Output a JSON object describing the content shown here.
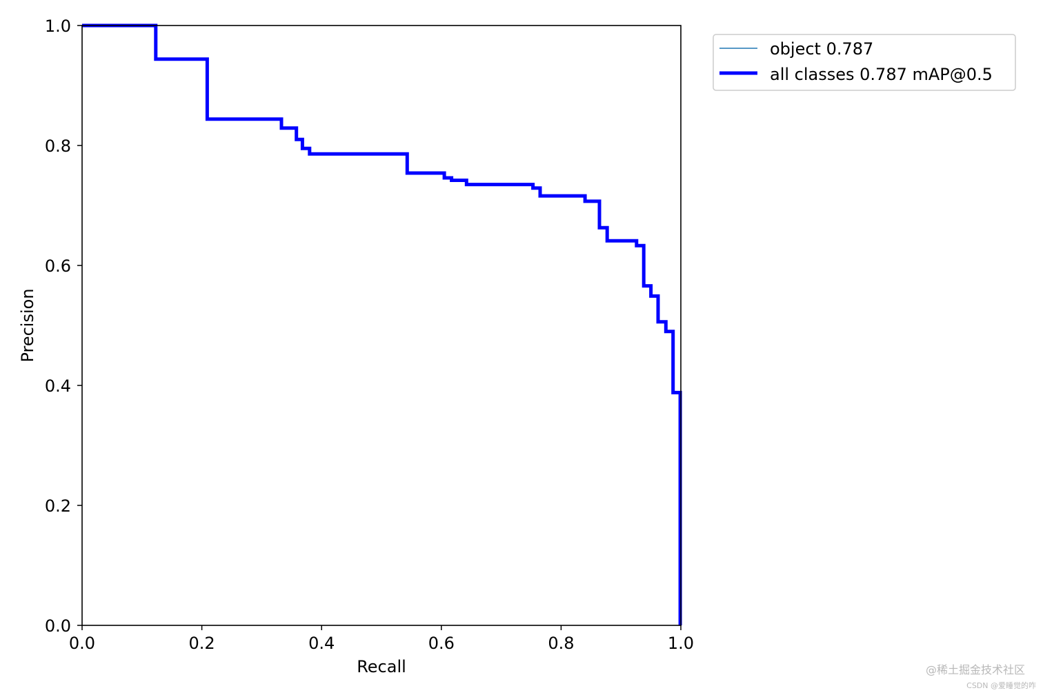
{
  "chart_data": {
    "type": "line",
    "title": "",
    "xlabel": "Recall",
    "ylabel": "Precision",
    "xlim": [
      0,
      1
    ],
    "ylim": [
      0,
      1
    ],
    "xticks": [
      "0.0",
      "0.2",
      "0.4",
      "0.6",
      "0.8",
      "1.0"
    ],
    "yticks": [
      "0.0",
      "0.2",
      "0.4",
      "0.6",
      "0.8",
      "1.0"
    ],
    "grid": false,
    "legend_position": "outside-top-right",
    "series": [
      {
        "name": "object 0.787",
        "color": "#1f77b4",
        "line_width": "thin",
        "x": [
          0,
          0.123,
          0.123,
          0.209,
          0.209,
          0.333,
          0.333,
          0.358,
          0.358,
          0.368,
          0.368,
          0.38,
          0.38,
          0.543,
          0.543,
          0.605,
          0.605,
          0.617,
          0.617,
          0.642,
          0.642,
          0.753,
          0.753,
          0.765,
          0.765,
          0.84,
          0.84,
          0.864,
          0.864,
          0.877,
          0.877,
          0.926,
          0.926,
          0.938,
          0.938,
          0.95,
          0.95,
          0.962,
          0.962,
          0.975,
          0.975,
          0.987,
          0.987,
          0.999,
          0.999
        ],
        "y": [
          1.0,
          1.0,
          0.944,
          0.944,
          0.844,
          0.844,
          0.829,
          0.829,
          0.81,
          0.81,
          0.795,
          0.795,
          0.786,
          0.786,
          0.754,
          0.754,
          0.746,
          0.746,
          0.742,
          0.742,
          0.735,
          0.735,
          0.729,
          0.729,
          0.716,
          0.716,
          0.707,
          0.707,
          0.663,
          0.663,
          0.641,
          0.641,
          0.633,
          0.633,
          0.566,
          0.566,
          0.549,
          0.549,
          0.506,
          0.506,
          0.49,
          0.49,
          0.388,
          0.388,
          0.0
        ]
      },
      {
        "name": "all classes 0.787 mAP@0.5",
        "color": "#0000ff",
        "line_width": "thick",
        "x": [
          0,
          0.123,
          0.123,
          0.209,
          0.209,
          0.333,
          0.333,
          0.358,
          0.358,
          0.368,
          0.368,
          0.38,
          0.38,
          0.543,
          0.543,
          0.605,
          0.605,
          0.617,
          0.617,
          0.642,
          0.642,
          0.753,
          0.753,
          0.765,
          0.765,
          0.84,
          0.84,
          0.864,
          0.864,
          0.877,
          0.877,
          0.926,
          0.926,
          0.938,
          0.938,
          0.95,
          0.95,
          0.962,
          0.962,
          0.975,
          0.975,
          0.987,
          0.987,
          0.999,
          0.999
        ],
        "y": [
          1.0,
          1.0,
          0.944,
          0.944,
          0.844,
          0.844,
          0.829,
          0.829,
          0.81,
          0.81,
          0.795,
          0.795,
          0.786,
          0.786,
          0.754,
          0.754,
          0.746,
          0.746,
          0.742,
          0.742,
          0.735,
          0.735,
          0.729,
          0.729,
          0.716,
          0.716,
          0.707,
          0.707,
          0.663,
          0.663,
          0.641,
          0.641,
          0.633,
          0.633,
          0.566,
          0.566,
          0.549,
          0.549,
          0.506,
          0.506,
          0.49,
          0.49,
          0.388,
          0.388,
          0.0
        ]
      }
    ]
  },
  "watermark": {
    "main": "@稀土掘金技术社区",
    "sub": "CSDN @爱睡觉的咋"
  }
}
